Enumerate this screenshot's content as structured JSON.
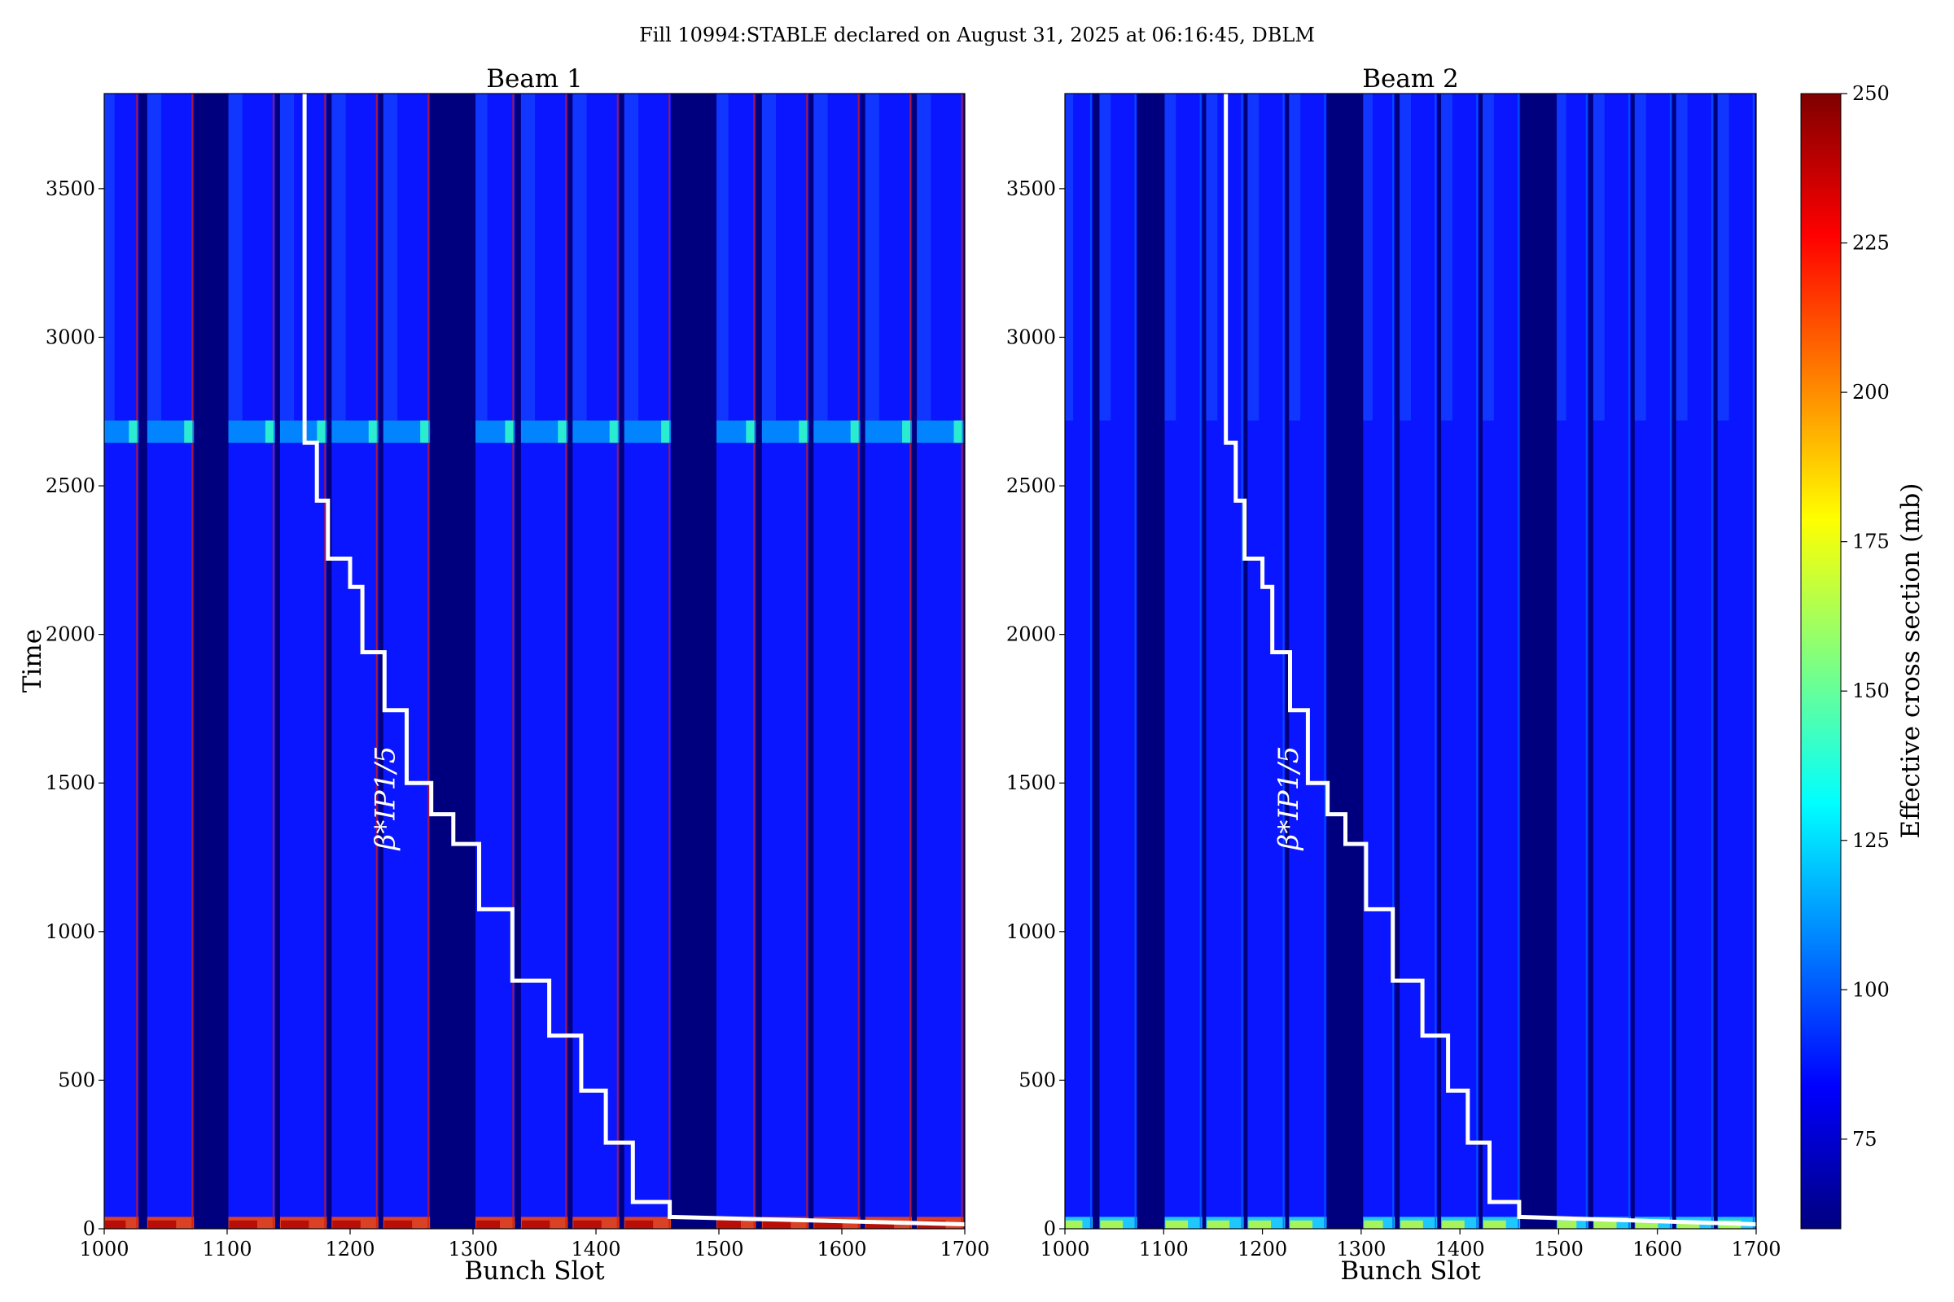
{
  "suptitle": "Fill 10994:STABLE declared on August 31, 2025 at 06:16:45, DBLM",
  "colors": {
    "gap": "#00007e",
    "fill_base": "#0a16ff",
    "fill_light": "#1852ff",
    "spike": "#d81a00",
    "overlay": "#ffffff"
  },
  "chart_data": [
    {
      "type": "heatmap",
      "title": "Beam 1",
      "xlabel": "Bunch Slot",
      "ylabel": "Time",
      "xlim": [
        1000,
        1700
      ],
      "ylim": [
        0,
        3820
      ],
      "xticks": [
        1000,
        1100,
        1200,
        1300,
        1400,
        1500,
        1600,
        1700
      ],
      "yticks": [
        0,
        500,
        1000,
        1500,
        2000,
        2500,
        3000,
        3500
      ],
      "filled_trains": [
        [
          1000,
          1027
        ],
        [
          1035,
          1072
        ],
        [
          1101,
          1138
        ],
        [
          1143,
          1180
        ],
        [
          1185,
          1222
        ],
        [
          1227,
          1264
        ],
        [
          1302,
          1333
        ],
        [
          1339,
          1376
        ],
        [
          1381,
          1418
        ],
        [
          1423,
          1460
        ],
        [
          1498,
          1529
        ],
        [
          1535,
          1572
        ],
        [
          1577,
          1614
        ],
        [
          1619,
          1656
        ],
        [
          1661,
          1698
        ]
      ],
      "band": [
        2645,
        2720
      ],
      "annotation": "β*IP1/5",
      "annotation_position": [
        1236,
        1450
      ],
      "beta_star_line": {
        "x": [
          1163,
          1163,
          1173,
          1173,
          1182,
          1182,
          1200,
          1200,
          1210,
          1210,
          1228,
          1228,
          1246,
          1246,
          1266,
          1266,
          1284,
          1284,
          1305,
          1305,
          1332,
          1332,
          1362,
          1362,
          1388,
          1388,
          1408,
          1408,
          1430,
          1430,
          1460,
          1460,
          1700
        ],
        "y": [
          3820,
          2645,
          2645,
          2450,
          2450,
          2255,
          2255,
          2160,
          2160,
          1940,
          1940,
          1745,
          1745,
          1500,
          1500,
          1395,
          1395,
          1295,
          1295,
          1075,
          1075,
          835,
          835,
          650,
          650,
          465,
          465,
          290,
          290,
          90,
          90,
          40,
          15
        ]
      }
    },
    {
      "type": "heatmap",
      "title": "Beam 2",
      "xlabel": "Bunch Slot",
      "ylabel": "",
      "xlim": [
        1000,
        1700
      ],
      "ylim": [
        0,
        3820
      ],
      "xticks": [
        1000,
        1100,
        1200,
        1300,
        1400,
        1500,
        1600,
        1700
      ],
      "yticks": [
        0,
        500,
        1000,
        1500,
        2000,
        2500,
        3000,
        3500
      ],
      "filled_trains": [
        [
          1000,
          1027
        ],
        [
          1035,
          1072
        ],
        [
          1101,
          1138
        ],
        [
          1143,
          1180
        ],
        [
          1185,
          1222
        ],
        [
          1227,
          1264
        ],
        [
          1302,
          1333
        ],
        [
          1339,
          1376
        ],
        [
          1381,
          1418
        ],
        [
          1423,
          1460
        ],
        [
          1498,
          1529
        ],
        [
          1535,
          1572
        ],
        [
          1577,
          1614
        ],
        [
          1619,
          1656
        ],
        [
          1661,
          1698
        ]
      ],
      "annotation": "β*IP1/5",
      "annotation_position": [
        1236,
        1450
      ],
      "beta_star_line": {
        "x": [
          1163,
          1163,
          1173,
          1173,
          1182,
          1182,
          1200,
          1200,
          1210,
          1210,
          1228,
          1228,
          1246,
          1246,
          1266,
          1266,
          1284,
          1284,
          1305,
          1305,
          1332,
          1332,
          1362,
          1362,
          1388,
          1388,
          1408,
          1408,
          1430,
          1430,
          1460,
          1460,
          1700
        ],
        "y": [
          3820,
          2645,
          2645,
          2450,
          2450,
          2255,
          2255,
          2160,
          2160,
          1940,
          1940,
          1745,
          1745,
          1500,
          1500,
          1395,
          1395,
          1295,
          1295,
          1075,
          1075,
          835,
          835,
          650,
          650,
          465,
          465,
          290,
          290,
          90,
          90,
          40,
          15
        ]
      }
    }
  ],
  "colorbar": {
    "label": "Effective cross section (mb)",
    "range": [
      60,
      250
    ],
    "ticks": [
      75,
      100,
      125,
      150,
      175,
      200,
      225,
      250
    ],
    "colormap": "jet"
  }
}
